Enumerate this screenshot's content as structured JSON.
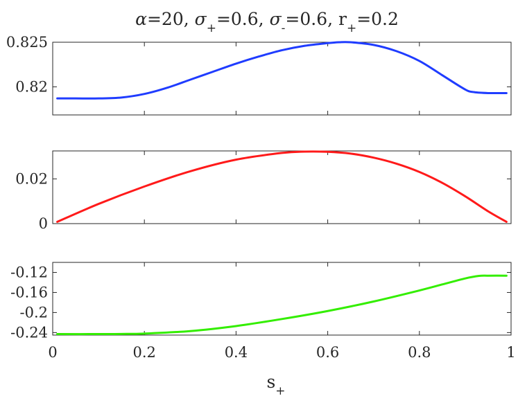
{
  "chart_data": {
    "type": "line",
    "title": {
      "alpha_symbol": "α",
      "alpha_value": "=20, ",
      "sigma_plus_symbol": "σ",
      "sigma_plus_sub": "+",
      "sigma_plus_value": "=0.6, ",
      "sigma_minus_symbol": "σ",
      "sigma_minus_sub": "-",
      "sigma_minus_value": "=0.6, ",
      "r_plus_symbol": "r",
      "r_plus_sub": "+",
      "r_plus_value": "=0.2"
    },
    "xlabel": {
      "main": "s",
      "sub": "+"
    },
    "grid": false,
    "xlim": [
      0,
      1
    ],
    "xticks": [
      0,
      0.2,
      0.4,
      0.6,
      0.8,
      1
    ],
    "xtick_labels": [
      "0",
      "0.2",
      "0.4",
      "0.6",
      "0.8",
      "1"
    ],
    "panels": [
      {
        "name": "top",
        "color": "#1f3cff",
        "ylim": [
          0.81685,
          0.825
        ],
        "yticks": [
          0.82,
          0.825
        ],
        "ytick_labels": [
          "0.82",
          "0.825"
        ],
        "x": [
          0.01,
          0.05,
          0.1,
          0.15,
          0.2,
          0.25,
          0.3,
          0.35,
          0.4,
          0.45,
          0.5,
          0.55,
          0.6,
          0.625,
          0.65,
          0.7,
          0.75,
          0.8,
          0.85,
          0.9,
          0.92,
          0.95,
          0.99
        ],
        "y": [
          0.8187,
          0.8187,
          0.8187,
          0.8188,
          0.8192,
          0.8199,
          0.8208,
          0.8217,
          0.8226,
          0.8234,
          0.8241,
          0.8246,
          0.8249,
          0.825,
          0.825,
          0.8247,
          0.824,
          0.8229,
          0.8213,
          0.8197,
          0.8194,
          0.8193,
          0.8193
        ]
      },
      {
        "name": "middle",
        "color": "#ff1a1a",
        "ylim": [
          0,
          0.0325
        ],
        "yticks": [
          0,
          0.02
        ],
        "ytick_labels": [
          "0",
          "0.02"
        ],
        "x": [
          0.01,
          0.1,
          0.2,
          0.3,
          0.4,
          0.5,
          0.55,
          0.6,
          0.65,
          0.7,
          0.75,
          0.8,
          0.85,
          0.9,
          0.95,
          0.99
        ],
        "y": [
          0.0008,
          0.0088,
          0.0166,
          0.0234,
          0.0286,
          0.0316,
          0.0322,
          0.0321,
          0.0313,
          0.0295,
          0.0268,
          0.0231,
          0.0182,
          0.0122,
          0.0055,
          0.0008
        ]
      },
      {
        "name": "bottom",
        "color": "#33ee00",
        "ylim": [
          -0.245,
          -0.1
        ],
        "yticks": [
          -0.24,
          -0.2,
          -0.16,
          -0.12
        ],
        "ytick_labels": [
          "-0.24",
          "-0.2",
          "-0.16",
          "-0.12"
        ],
        "x": [
          0.01,
          0.1,
          0.15,
          0.2,
          0.3,
          0.4,
          0.5,
          0.6,
          0.7,
          0.8,
          0.85,
          0.9,
          0.93,
          0.95,
          0.99
        ],
        "y": [
          -0.243,
          -0.243,
          -0.2427,
          -0.242,
          -0.237,
          -0.227,
          -0.213,
          -0.197,
          -0.178,
          -0.156,
          -0.144,
          -0.132,
          -0.127,
          -0.1265,
          -0.1265
        ]
      }
    ]
  }
}
